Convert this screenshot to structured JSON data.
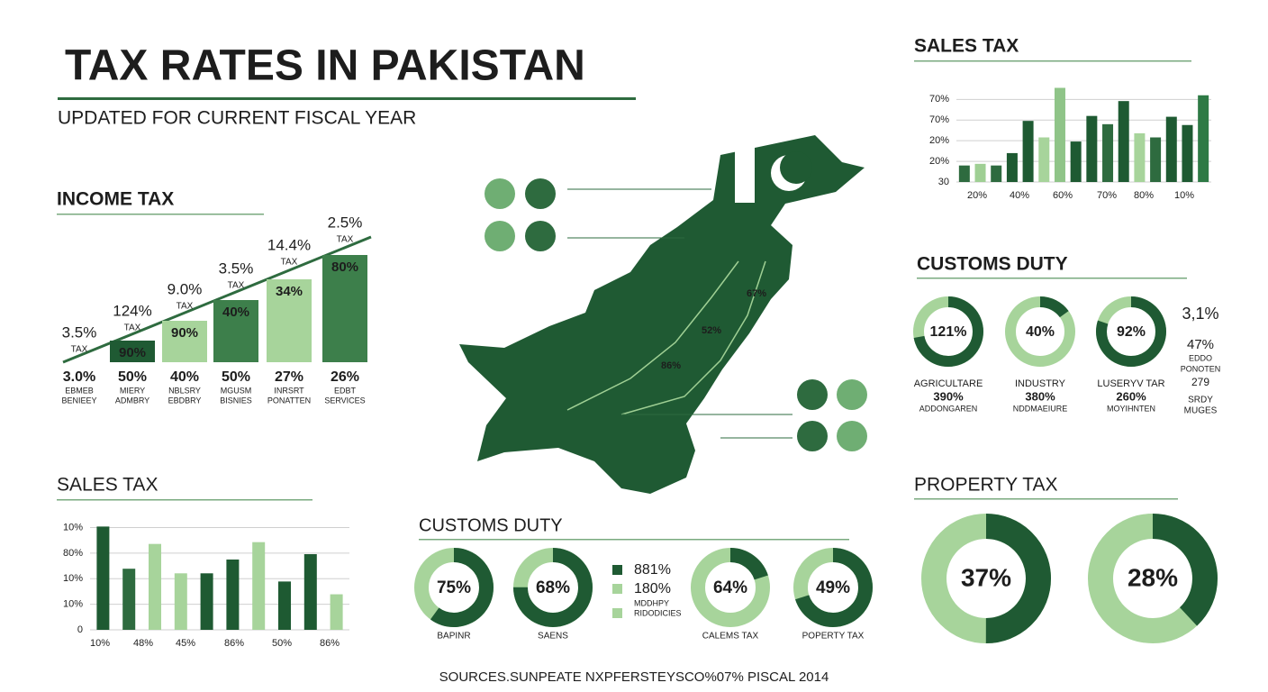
{
  "header": {
    "title": "TAX RATES IN PAKISTAN",
    "subtitle": "UPDATED FOR CURRENT FISCAL YEAR"
  },
  "income_tax": {
    "title": "INCOME TAX",
    "columns": [
      {
        "rate": "3.5%",
        "tax": "TAX",
        "bar": null,
        "pct": "3.0%",
        "label1": "EBMEB",
        "label2": "BENIEEY"
      },
      {
        "rate": "124%",
        "tax": "TAX",
        "bar": "90%",
        "pct": "50%",
        "label1": "MIERY",
        "label2": "ADMBRY"
      },
      {
        "rate": "9.0%",
        "tax": "TAX",
        "bar": "90%",
        "pct": "40%",
        "label1": "NBLSRY",
        "label2": "EBDBRY"
      },
      {
        "rate": "3.5%",
        "tax": "TAX",
        "bar": "40%",
        "pct": "50%",
        "label1": "MGUSM",
        "label2": "BISNIES"
      },
      {
        "rate": "14.4%",
        "tax": "TAX",
        "bar": "34%",
        "pct": "27%",
        "label1": "INRSRT",
        "label2": "PONATTEN"
      },
      {
        "rate": "2.5%",
        "tax": "TAX",
        "bar": "80%",
        "pct": "26%",
        "label1": "EDBT",
        "label2": "SERVICES"
      }
    ]
  },
  "chart_data": [
    {
      "type": "bar",
      "title": "SALES TAX",
      "values": [
        0.8,
        0.88,
        0.8,
        1.4,
        2.96,
        2.16,
        4.56,
        1.96,
        3.2,
        2.8,
        3.92,
        2.36,
        2.16,
        3.16,
        2.76,
        4.2
      ],
      "colors": [
        "#2e6b3f",
        "#9fcf94",
        "#2e6b3f",
        "#1e5a32",
        "#1e5a32",
        "#a7d49b",
        "#8fc488",
        "#1e5a32",
        "#1e5a32",
        "#2e6b3f",
        "#1e5a32",
        "#a7d49b",
        "#2e6b3f",
        "#1e5a32",
        "#1e5a32",
        "#2e7a45"
      ],
      "xtick_labels": [
        "20%",
        "40%",
        "60%",
        "70%",
        "80%",
        "10%"
      ],
      "ylim": [
        0,
        4.8
      ],
      "yticks": [
        {
          "value": 0,
          "label": "30"
        },
        {
          "value": 1,
          "label": "20%"
        },
        {
          "value": 2,
          "label": "20%"
        },
        {
          "value": 3,
          "label": "70%"
        },
        {
          "value": 4,
          "label": "70%"
        }
      ],
      "grid": true
    },
    {
      "type": "bar",
      "title": "SALES TAX",
      "values": [
        4.04,
        2.39,
        3.36,
        2.21,
        2.21,
        2.75,
        3.43,
        1.89,
        2.96,
        1.39
      ],
      "colors": [
        "#1e5a32",
        "#2e6b3f",
        "#a7d49b",
        "#a7d49b",
        "#1e5a32",
        "#1e5a32",
        "#a7d49b",
        "#1e5a32",
        "#1e5a32",
        "#a7d49b"
      ],
      "xtick_labels": [
        "10%",
        "48%",
        "45%",
        "86%",
        "50%",
        "86%"
      ],
      "ylim": [
        0,
        4.3
      ],
      "yticks": [
        {
          "value": 0,
          "label": "0"
        },
        {
          "value": 1,
          "label": "10%"
        },
        {
          "value": 2,
          "label": "10%"
        },
        {
          "value": 3,
          "label": "80%"
        },
        {
          "value": 4,
          "label": "10%"
        }
      ],
      "grid": true
    },
    {
      "type": "donut",
      "title": "CUSTOMS DUTY",
      "rings": [
        {
          "label": "121%",
          "share": 72,
          "name": "AGRICULTARE",
          "value_text": "390%",
          "sub": "ADDONGAREN"
        },
        {
          "label": "40%",
          "share": 15,
          "name": "INDUSTRY",
          "value_text": "380%",
          "sub": "NDDMAEIURE"
        },
        {
          "label": "92%",
          "share": 80,
          "name": "LUSERYV TAR",
          "value_text": "260%",
          "sub": "MOYIHNTEN"
        }
      ],
      "side": [
        "3,1%",
        "47%",
        "EDDO",
        "PONOTEN",
        "279",
        "SRDY",
        "MUGES"
      ]
    },
    {
      "type": "donut",
      "title": "PROPERTY TAX",
      "rings": [
        {
          "label": "37%",
          "share": 50
        },
        {
          "label": "28%",
          "share": 38
        }
      ]
    },
    {
      "type": "donut",
      "title": "CUSTOMS DUTY",
      "rings": [
        {
          "label": "75%",
          "share": 60,
          "name": "BAPINR"
        },
        {
          "label": "68%",
          "share": 75,
          "name": "SAENS"
        },
        {
          "label": "64%",
          "share": 20,
          "name": "CALEMS TAX"
        },
        {
          "label": "49%",
          "share": 70,
          "name": "POPERTY TAX"
        }
      ],
      "legend": [
        "881%",
        "180%",
        "MDDHPY",
        "RIDODICIES"
      ]
    }
  ],
  "map": {
    "labels": [
      "67%",
      "52%",
      "86%"
    ]
  },
  "footer": {
    "source": "SOURCES.SUNPEATE NXPFERSTEYSCO%07% PISCAL 2014"
  }
}
